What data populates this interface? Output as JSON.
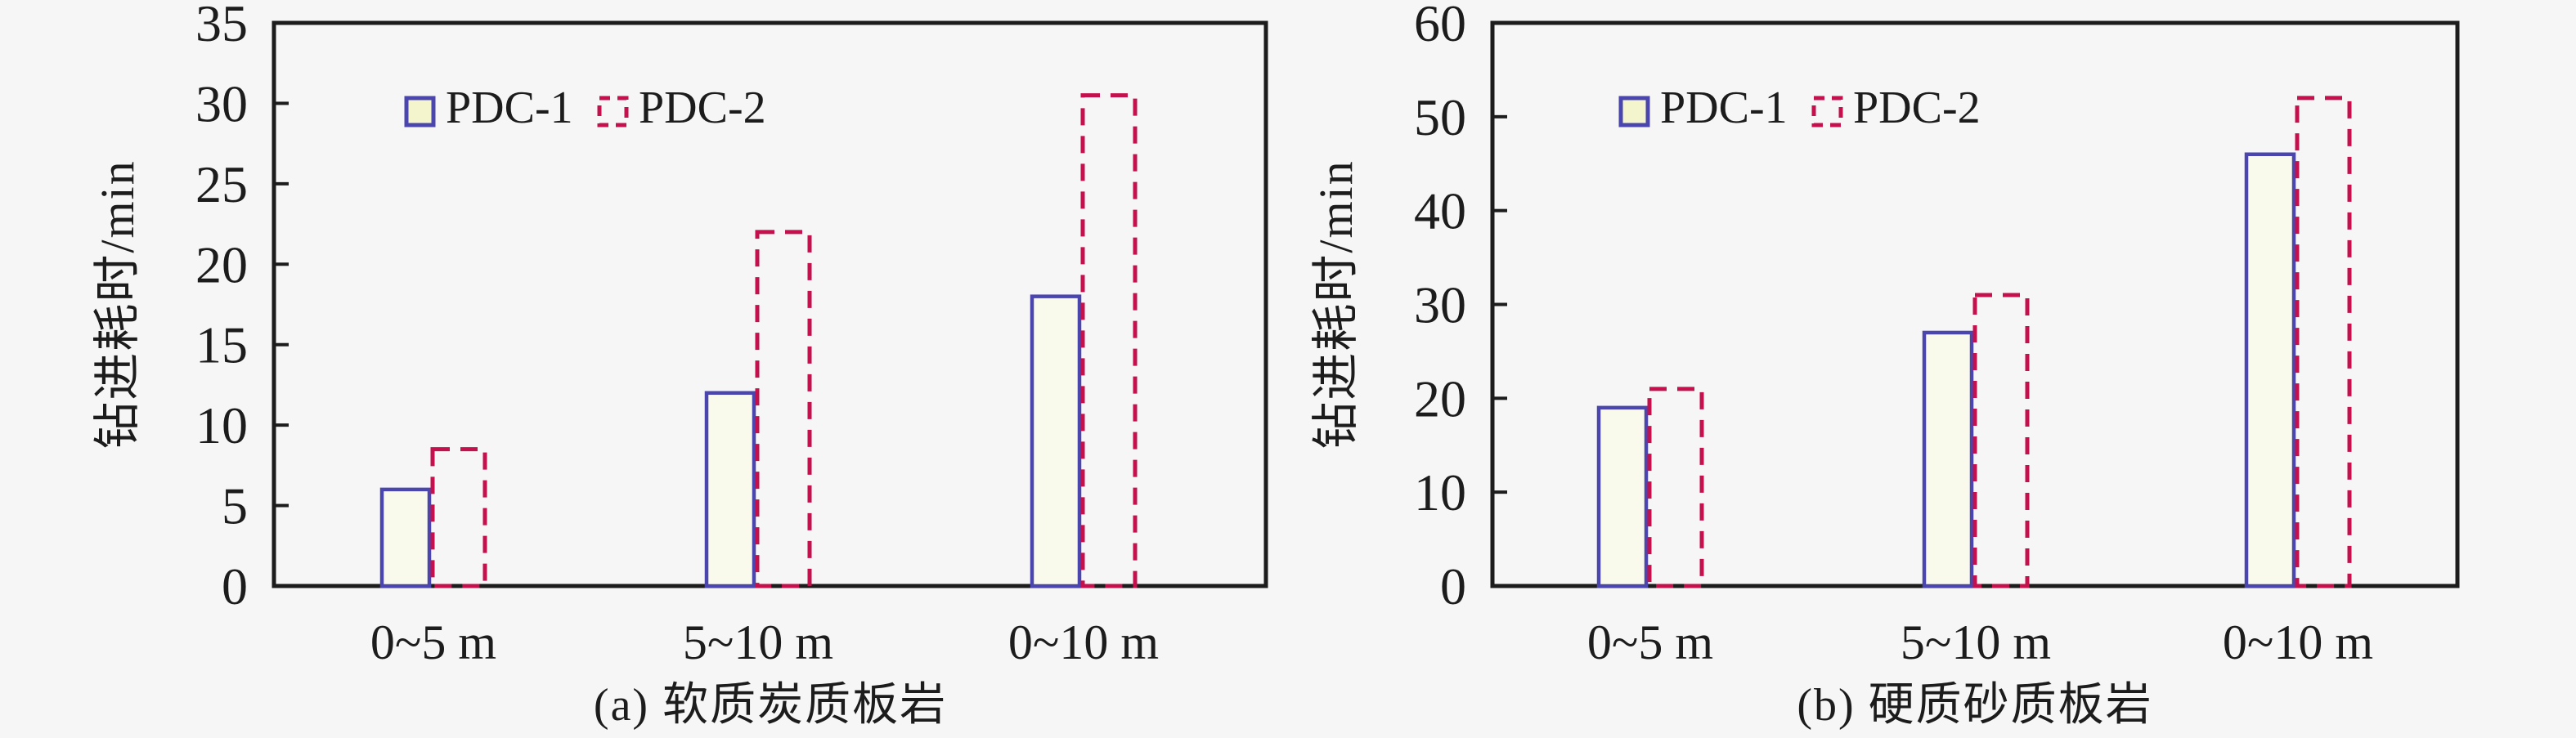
{
  "page": {
    "background": "#f6f6f6",
    "frame_color": "#1c1c1c",
    "text_color": "#1c1c1c"
  },
  "legend": {
    "items": [
      {
        "label": "PDC-1",
        "marker": "solid-square-outline"
      },
      {
        "label": "PDC-2",
        "marker": "dashed-square-outline"
      }
    ]
  },
  "chart_data": [
    {
      "type": "bar",
      "caption": "(a) 软质炭质板岩",
      "ylabel": "钻进耗时/min",
      "xlabel": "",
      "categories": [
        "0~5 m",
        "5~10 m",
        "0~10 m"
      ],
      "series": [
        {
          "name": "PDC-1",
          "style": "solid",
          "stroke": "#4a46ad",
          "fill": "#fafaec",
          "values": [
            6,
            12,
            18
          ]
        },
        {
          "name": "PDC-2",
          "style": "dashed",
          "stroke": "#c4104d",
          "fill": "none",
          "values": [
            8.5,
            22,
            30.5
          ]
        }
      ],
      "ylim": [
        0,
        35
      ],
      "ytick_step": 5,
      "grid": false,
      "legend_position": "top-left-inside"
    },
    {
      "type": "bar",
      "caption": "(b) 硬质砂质板岩",
      "ylabel": "钻进耗时/min",
      "xlabel": "",
      "categories": [
        "0~5 m",
        "5~10 m",
        "0~10 m"
      ],
      "series": [
        {
          "name": "PDC-1",
          "style": "solid",
          "stroke": "#4a46ad",
          "fill": "#fafaec",
          "values": [
            19,
            27,
            46
          ]
        },
        {
          "name": "PDC-2",
          "style": "dashed",
          "stroke": "#c4104d",
          "fill": "none",
          "values": [
            21,
            31,
            52
          ]
        }
      ],
      "ylim": [
        0,
        60
      ],
      "ytick_step": 10,
      "grid": false,
      "legend_position": "top-left-inside"
    }
  ],
  "marker_fill": "#f5f5cd"
}
